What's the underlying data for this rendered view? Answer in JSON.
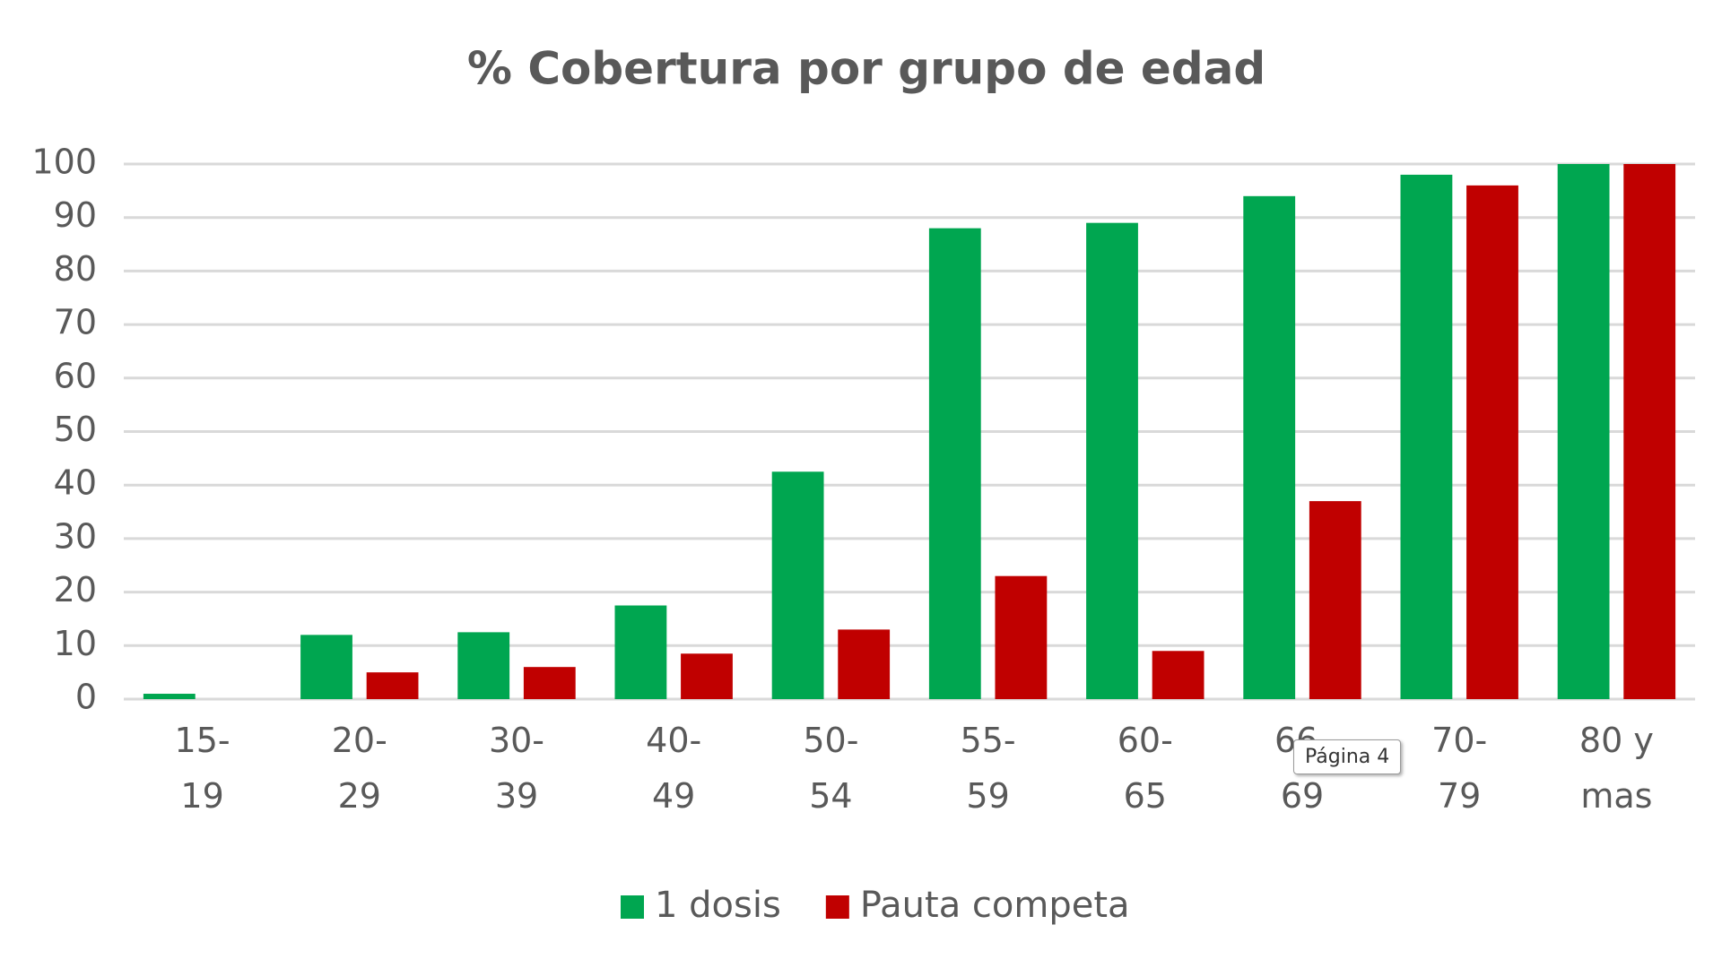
{
  "chart_data": {
    "type": "bar",
    "title": "% Cobertura por grupo de edad",
    "categories": [
      "15-19",
      "20-29",
      "30-39",
      "40-49",
      "50-54",
      "55-59",
      "60-65",
      "66-69",
      "70-79",
      "80 y mas"
    ],
    "series": [
      {
        "name": "1 dosis",
        "color": "#00a650",
        "values": [
          1,
          12,
          12.5,
          17.5,
          42.5,
          88,
          89,
          94,
          98,
          100
        ]
      },
      {
        "name": "Pauta competa",
        "color": "#c00000",
        "values": [
          0,
          5,
          6,
          8.5,
          13,
          23,
          9,
          37,
          96,
          100
        ]
      }
    ],
    "ylim": [
      0,
      100
    ],
    "yticks": [
      0,
      10,
      20,
      30,
      40,
      50,
      60,
      70,
      80,
      90,
      100
    ],
    "grid": true,
    "legend": "bottom",
    "tooltip": "Página 4"
  }
}
